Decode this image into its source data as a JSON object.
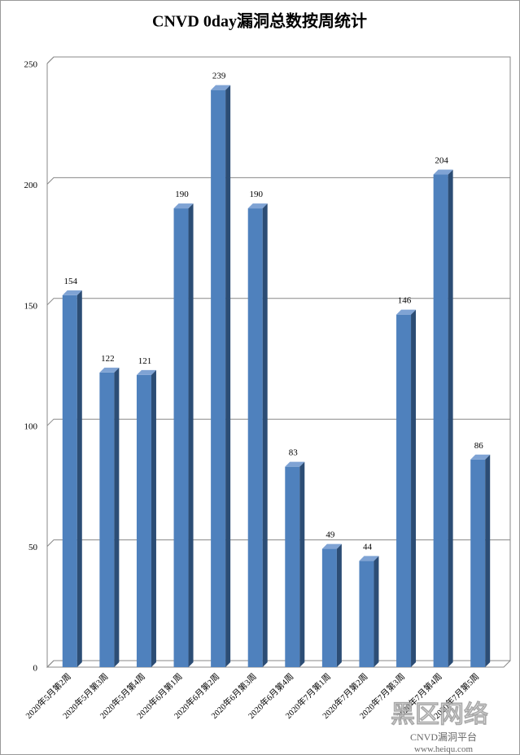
{
  "chart_data": {
    "type": "bar3d",
    "title": "CNVD 0day漏洞总数按周统计",
    "categories": [
      "2020年5月第2周",
      "2020年5月第3周",
      "2020年5月第4周",
      "2020年6月第1周",
      "2020年6月第2周",
      "2020年6月第3周",
      "2020年6月第4周",
      "2020年7月第1周",
      "2020年7月第2周",
      "2020年7月第3周",
      "2020年7月第4周",
      "2020年7月第5周"
    ],
    "values": [
      154,
      122,
      121,
      190,
      239,
      190,
      83,
      49,
      44,
      146,
      204,
      86
    ],
    "color": "#4f81bd",
    "ylim": [
      0,
      250
    ],
    "yticks": [
      0,
      50,
      100,
      150,
      200,
      250
    ],
    "grid": true
  },
  "watermark": {
    "brand": "黑区网络",
    "platform": "CNVD漏洞平台",
    "site": "www.heiqu.com"
  }
}
